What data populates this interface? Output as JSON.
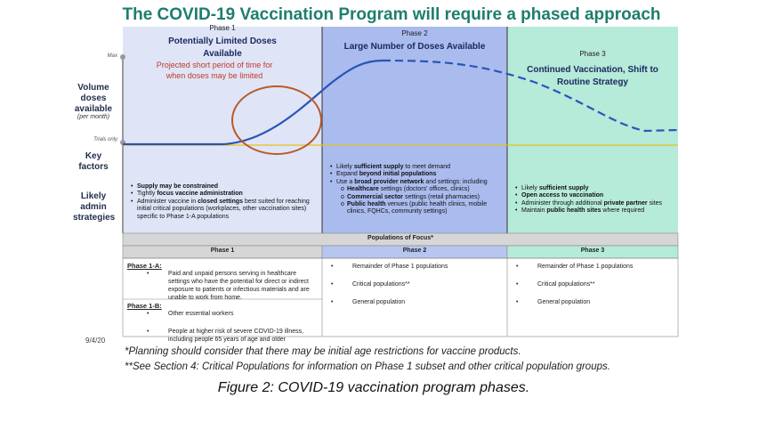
{
  "title": "The COVID-19 Vaccination Program will require a phased approach",
  "side_labels": {
    "max": "Max",
    "volume": "Volume doses available",
    "per_month": "(per month)",
    "trials": "Trials only",
    "key_factors": "Key factors",
    "admin": "Likely admin strategies"
  },
  "annotation": "Projected short period of time for when doses may be limited",
  "phases": [
    {
      "label": "Phase 1",
      "heading": "Potentially Limited Doses Available",
      "items": [
        {
          "runs": [
            {
              "bold": "Supply may be constrained"
            }
          ]
        },
        {
          "runs": [
            "Tightly ",
            {
              "bold": "focus vaccine administration"
            }
          ]
        },
        {
          "runs": [
            "Administer vaccine in ",
            {
              "bold": "closed settings"
            },
            " best suited for reaching initial critical populations (workplaces, other vaccination sites) specific to Phase 1-A populations"
          ]
        }
      ]
    },
    {
      "label": "Phase 2",
      "heading": "Large Number of Doses Available",
      "items": [
        {
          "runs": [
            "Likely ",
            {
              "bold": "sufficient supply"
            },
            " to meet demand"
          ]
        },
        {
          "runs": [
            "Expand ",
            {
              "bold": "beyond initial populations"
            }
          ]
        },
        {
          "runs": [
            "Use a ",
            {
              "bold": "broad provider network"
            },
            " and settings: including"
          ],
          "subitems": [
            [
              {
                "bold": "Healthcare"
              },
              " settings (doctors' offices, clinics)"
            ],
            [
              {
                "bold": "Commercial sector"
              },
              " settings (retail pharmacies)"
            ],
            [
              {
                "bold": "Public health"
              },
              " venues (public health clinics, mobile clinics, FQHCs, community settings)"
            ]
          ]
        }
      ]
    },
    {
      "label": "Phase 3",
      "heading": "Continued Vaccination, Shift to Routine Strategy",
      "items": [
        {
          "runs": [
            "Likely ",
            {
              "bold": "sufficient supply"
            }
          ]
        },
        {
          "runs": [
            {
              "bold": "Open access to vaccination"
            }
          ]
        },
        {
          "runs": [
            "Administer through additional ",
            {
              "bold": "private partner"
            },
            " sites"
          ]
        },
        {
          "runs": [
            "Maintain ",
            {
              "bold": "public health sites"
            },
            " where required"
          ]
        }
      ]
    }
  ],
  "table": {
    "header": "Populations of Focus*",
    "phase1": [
      {
        "title": "Phase 1-A:",
        "bullets": [
          "Paid and unpaid persons serving in healthcare settings who have the potential for direct or indirect exposure to patients or infectious materials and are unable to work from home."
        ]
      },
      {
        "title": "Phase 1-B:",
        "bullets": [
          "Other essential workers",
          "People at higher risk of severe COVID-19 illness, including people 65 years of age and older"
        ]
      }
    ],
    "phase2": [
      "Remainder of Phase 1 populations",
      "Critical populations**",
      "General population"
    ],
    "phase3": [
      "Remainder of Phase 1 populations",
      "Critical populations**",
      "General population"
    ]
  },
  "date": "9/4/20",
  "footnotes": [
    "*Planning should consider that there may be initial age restrictions for vaccine products.",
    "**See Section 4: Critical Populations for information on Phase 1 subset and other critical population groups."
  ],
  "caption": "Figure 2: COVID-19 vaccination program phases."
}
